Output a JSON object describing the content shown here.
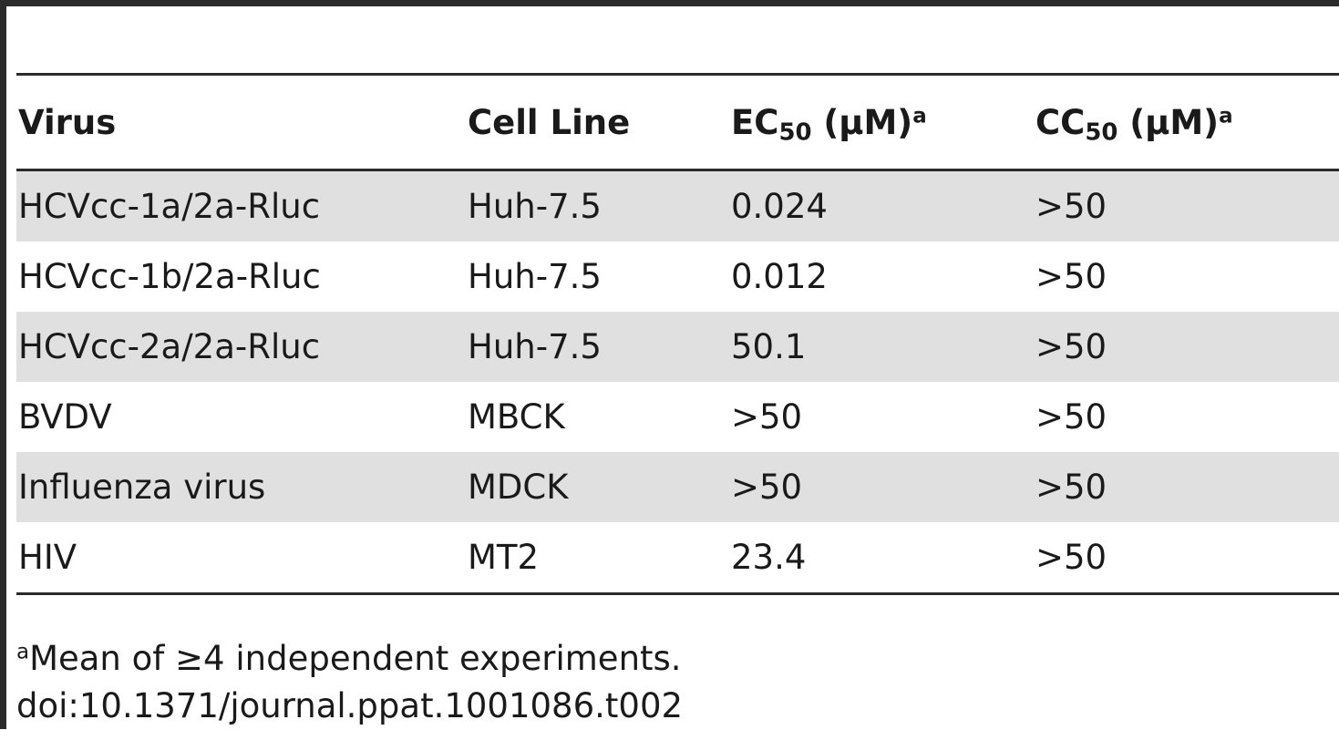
{
  "table": {
    "headers": [
      {
        "main": "Virus",
        "sub": "",
        "rest": "",
        "sup": ""
      },
      {
        "main": "Cell Line",
        "sub": "",
        "rest": "",
        "sup": ""
      },
      {
        "main": "EC",
        "sub": "50",
        "rest": " (µM)",
        "sup": "a"
      },
      {
        "main": "CC",
        "sub": "50",
        "rest": " (µM)",
        "sup": "a"
      }
    ],
    "rows": [
      {
        "virus": "HCVcc-1a/2a-Rluc",
        "cell_line": "Huh-7.5",
        "ec50": "0.024",
        "cc50": ">50"
      },
      {
        "virus": "HCVcc-1b/2a-Rluc",
        "cell_line": "Huh-7.5",
        "ec50": "0.012",
        "cc50": ">50"
      },
      {
        "virus": "HCVcc-2a/2a-Rluc",
        "cell_line": "Huh-7.5",
        "ec50": "50.1",
        "cc50": ">50"
      },
      {
        "virus": "BVDV",
        "cell_line": "MBCK",
        "ec50": ">50",
        "cc50": ">50"
      },
      {
        "virus": "Influenza virus",
        "cell_line": "MDCK",
        "ec50": ">50",
        "cc50": ">50"
      },
      {
        "virus": "HIV",
        "cell_line": "MT2",
        "ec50": "23.4",
        "cc50": ">50"
      }
    ]
  },
  "footnote": {
    "marker": "a",
    "text": "Mean of ≥4 independent experiments."
  },
  "doi": "doi:10.1371/journal.ppat.1001086.t002",
  "colors": {
    "rule": "#2b2b2b",
    "row_shade": "#e0e0e0"
  }
}
